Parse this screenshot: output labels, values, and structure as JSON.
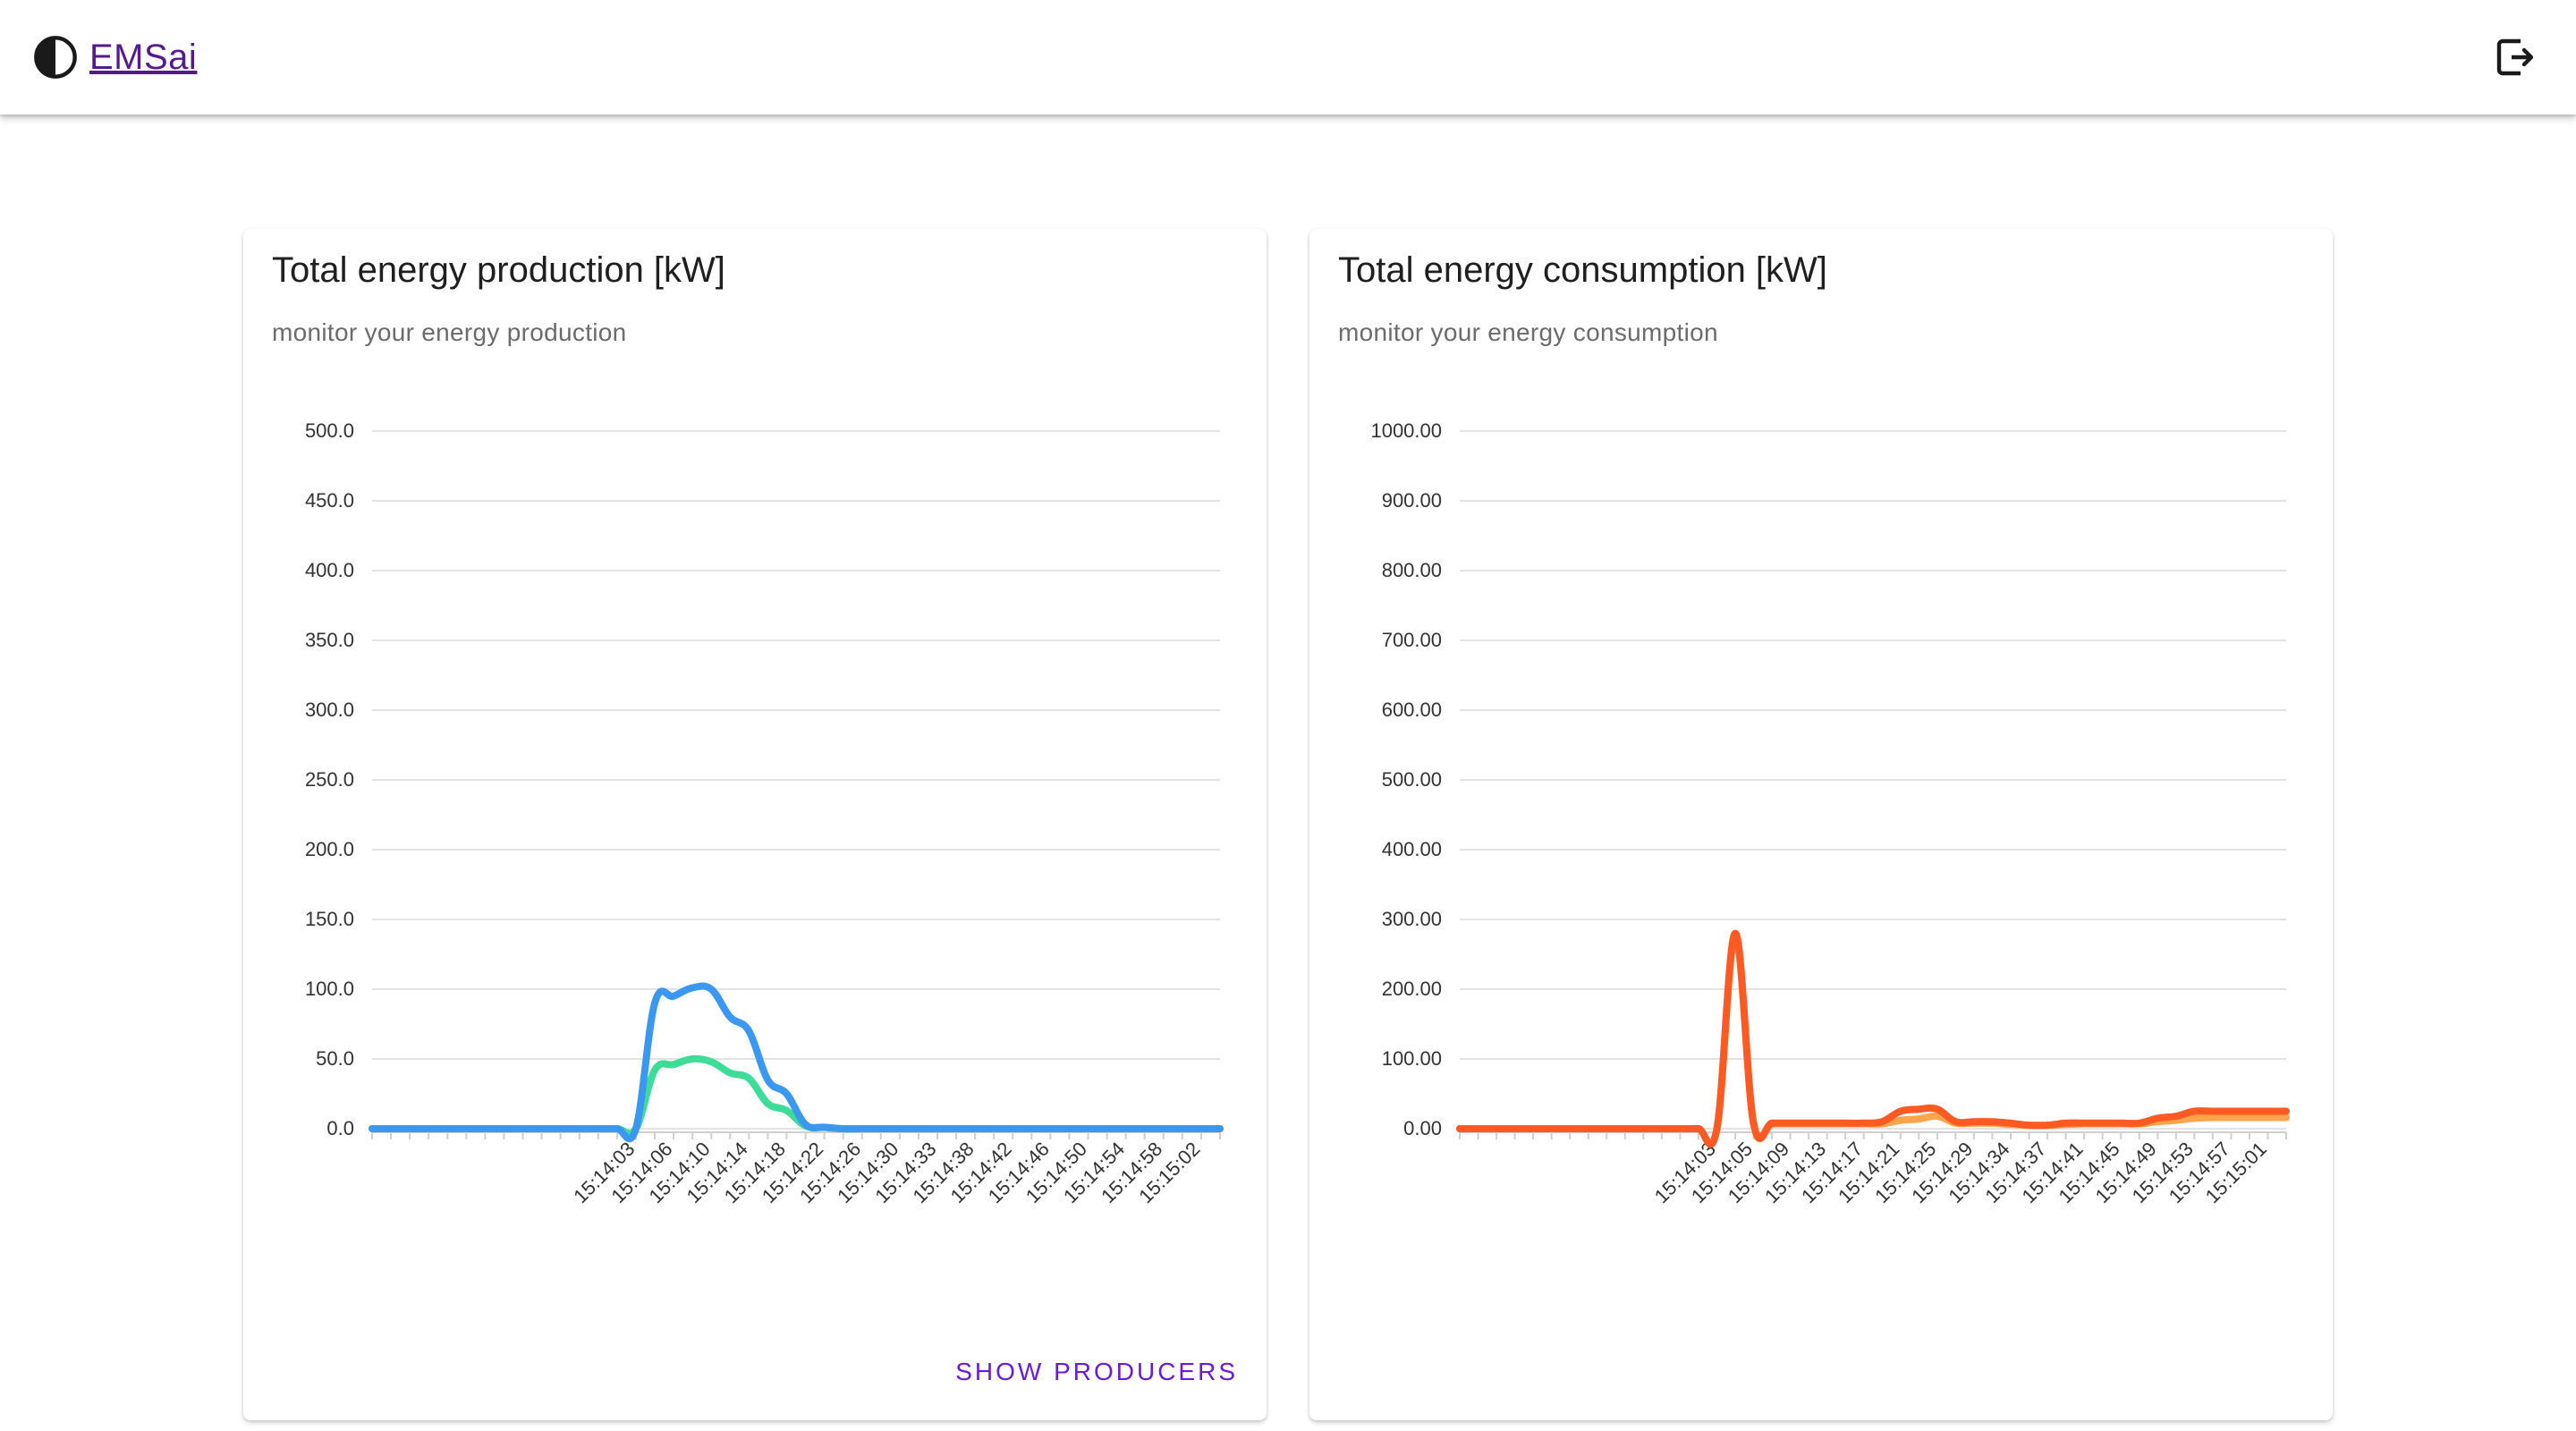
{
  "app": {
    "brand_name": "EMSai",
    "icons": {
      "theme_toggle": "contrast-icon",
      "logout": "logout-icon"
    }
  },
  "colors": {
    "link": "#551a8b",
    "accent": "#6a1bd9",
    "production_total": "#3b98f0",
    "production_solar": "#3ddc97",
    "consumption_total": "#ff5a24",
    "consumption_secondary": "#ffa44a"
  },
  "production_card": {
    "title": "Total energy production [kW]",
    "subtitle": "monitor your energy production",
    "button_label": "SHOW PRODUCERS"
  },
  "consumption_card": {
    "title": "Total energy consumption [kW]",
    "subtitle": "monitor your energy consumption"
  },
  "chart_data": [
    {
      "id": "production",
      "type": "line",
      "title": "Total energy production [kW]",
      "subtitle": "monitor your energy production",
      "ylim": [
        0,
        500
      ],
      "yticks": [
        0,
        50,
        100,
        150,
        200,
        250,
        300,
        350,
        400,
        450,
        500
      ],
      "ytick_labels": [
        "0.0",
        "50.0",
        "100.0",
        "150.0",
        "200.0",
        "250.0",
        "300.0",
        "350.0",
        "400.0",
        "450.0",
        "500.0"
      ],
      "grid": true,
      "legend": "none",
      "xtick_labels": [
        "15:14:03",
        "15:14:06",
        "15:14:10",
        "15:14:14",
        "15:14:18",
        "15:14:22",
        "15:14:26",
        "15:14:30",
        "15:14:33",
        "15:14:38",
        "15:14:42",
        "15:14:46",
        "15:14:50",
        "15:14:54",
        "15:14:58",
        "15:15:02"
      ],
      "xtick_index": [
        14,
        16,
        18,
        20,
        22,
        24,
        26,
        28,
        30,
        32,
        34,
        36,
        38,
        40,
        42,
        44
      ],
      "point_count": 46,
      "series": [
        {
          "color": "#3b98f0",
          "values": [
            0,
            0,
            0,
            0,
            0,
            0,
            0,
            0,
            0,
            0,
            0,
            0,
            0,
            0,
            0,
            90,
            95,
            101,
            100,
            80,
            70,
            35,
            25,
            3,
            1,
            0,
            0,
            0,
            0,
            0,
            0,
            0,
            0,
            0,
            0,
            0,
            0,
            0,
            0,
            0,
            0,
            0,
            0,
            0,
            0,
            0
          ]
        },
        {
          "color": "#3ddc97",
          "values": [
            0,
            0,
            0,
            0,
            0,
            0,
            0,
            0,
            0,
            0,
            0,
            0,
            0,
            0,
            0,
            42,
            46,
            50,
            48,
            40,
            36,
            18,
            13,
            2,
            1,
            0,
            0,
            0,
            0,
            0,
            0,
            0,
            0,
            0,
            0,
            0,
            0,
            0,
            0,
            0,
            0,
            0,
            0,
            0,
            0,
            0
          ]
        }
      ]
    },
    {
      "id": "consumption",
      "type": "line",
      "title": "Total energy consumption [kW]",
      "subtitle": "monitor your energy consumption",
      "ylim": [
        0,
        1000
      ],
      "yticks": [
        0,
        100,
        200,
        300,
        400,
        500,
        600,
        700,
        800,
        900,
        1000
      ],
      "ytick_labels": [
        "0.00",
        "100.00",
        "200.00",
        "300.00",
        "400.00",
        "500.00",
        "600.00",
        "700.00",
        "800.00",
        "900.00",
        "1000.00"
      ],
      "grid": true,
      "legend": "none",
      "xtick_labels": [
        "15:14:03",
        "15:14:05",
        "15:14:09",
        "15:14:13",
        "15:14:17",
        "15:14:21",
        "15:14:25",
        "15:14:29",
        "15:14:34",
        "15:14:37",
        "15:14:41",
        "15:14:45",
        "15:14:49",
        "15:14:53",
        "15:14:57",
        "15:15:01"
      ],
      "xtick_index": [
        14,
        16,
        18,
        20,
        22,
        24,
        26,
        28,
        30,
        32,
        34,
        36,
        38,
        40,
        42,
        44
      ],
      "point_count": 46,
      "series": [
        {
          "color": "#ff5a24",
          "values": [
            0,
            0,
            0,
            0,
            0,
            0,
            0,
            0,
            0,
            0,
            0,
            0,
            0,
            0,
            0,
            280,
            8,
            8,
            8,
            8,
            8,
            8,
            8,
            10,
            25,
            28,
            28,
            10,
            10,
            10,
            8,
            5,
            5,
            8,
            8,
            8,
            8,
            8,
            15,
            18,
            25,
            25,
            25,
            25,
            25,
            25
          ]
        },
        {
          "color": "#ffa44a",
          "values": [
            0,
            0,
            0,
            0,
            0,
            0,
            0,
            0,
            0,
            0,
            0,
            0,
            0,
            0,
            0,
            275,
            7,
            7,
            7,
            7,
            7,
            7,
            7,
            7,
            12,
            14,
            18,
            8,
            8,
            8,
            6,
            5,
            5,
            6,
            7,
            7,
            7,
            7,
            10,
            12,
            15,
            16,
            16,
            16,
            16,
            16
          ]
        }
      ]
    }
  ]
}
